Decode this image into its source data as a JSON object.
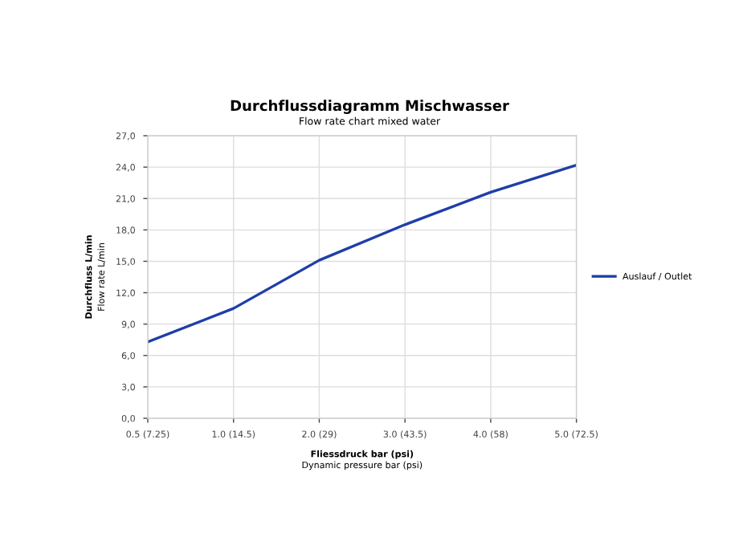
{
  "chart_data": {
    "type": "line",
    "title": "Durchflussdiagramm Mischwasser",
    "subtitle": "Flow rate chart mixed water",
    "xlabel": "Fliessdruck bar (psi)\nDynamic pressure bar (psi)",
    "ylabel": "Durchfluss L/min\nFlow rate L/min",
    "categories": [
      "0.5 (7.25)",
      "1.0 (14.5)",
      "2.0 (29)",
      "3.0 (43.5)",
      "4.0 (58)",
      "5.0 (72.5)"
    ],
    "series": [
      {
        "name": "Auslauf / Outlet",
        "color": "#1f3ea8",
        "values": [
          7.3,
          10.5,
          15.1,
          18.5,
          21.6,
          24.2
        ]
      }
    ],
    "ylim": [
      0,
      27
    ],
    "yticks": [
      {
        "value": 0,
        "label": "0,0"
      },
      {
        "value": 3,
        "label": "3,0"
      },
      {
        "value": 6,
        "label": "6,0"
      },
      {
        "value": 9,
        "label": "9,0"
      },
      {
        "value": 12,
        "label": "12,0"
      },
      {
        "value": 15,
        "label": "15,0"
      },
      {
        "value": 18,
        "label": "18,0"
      },
      {
        "value": 21,
        "label": "21,0"
      },
      {
        "value": 24,
        "label": "24,0"
      },
      {
        "value": 27,
        "label": "27,0"
      }
    ],
    "grid": true,
    "legend": "right",
    "marker": "none",
    "line_style": "solid"
  }
}
